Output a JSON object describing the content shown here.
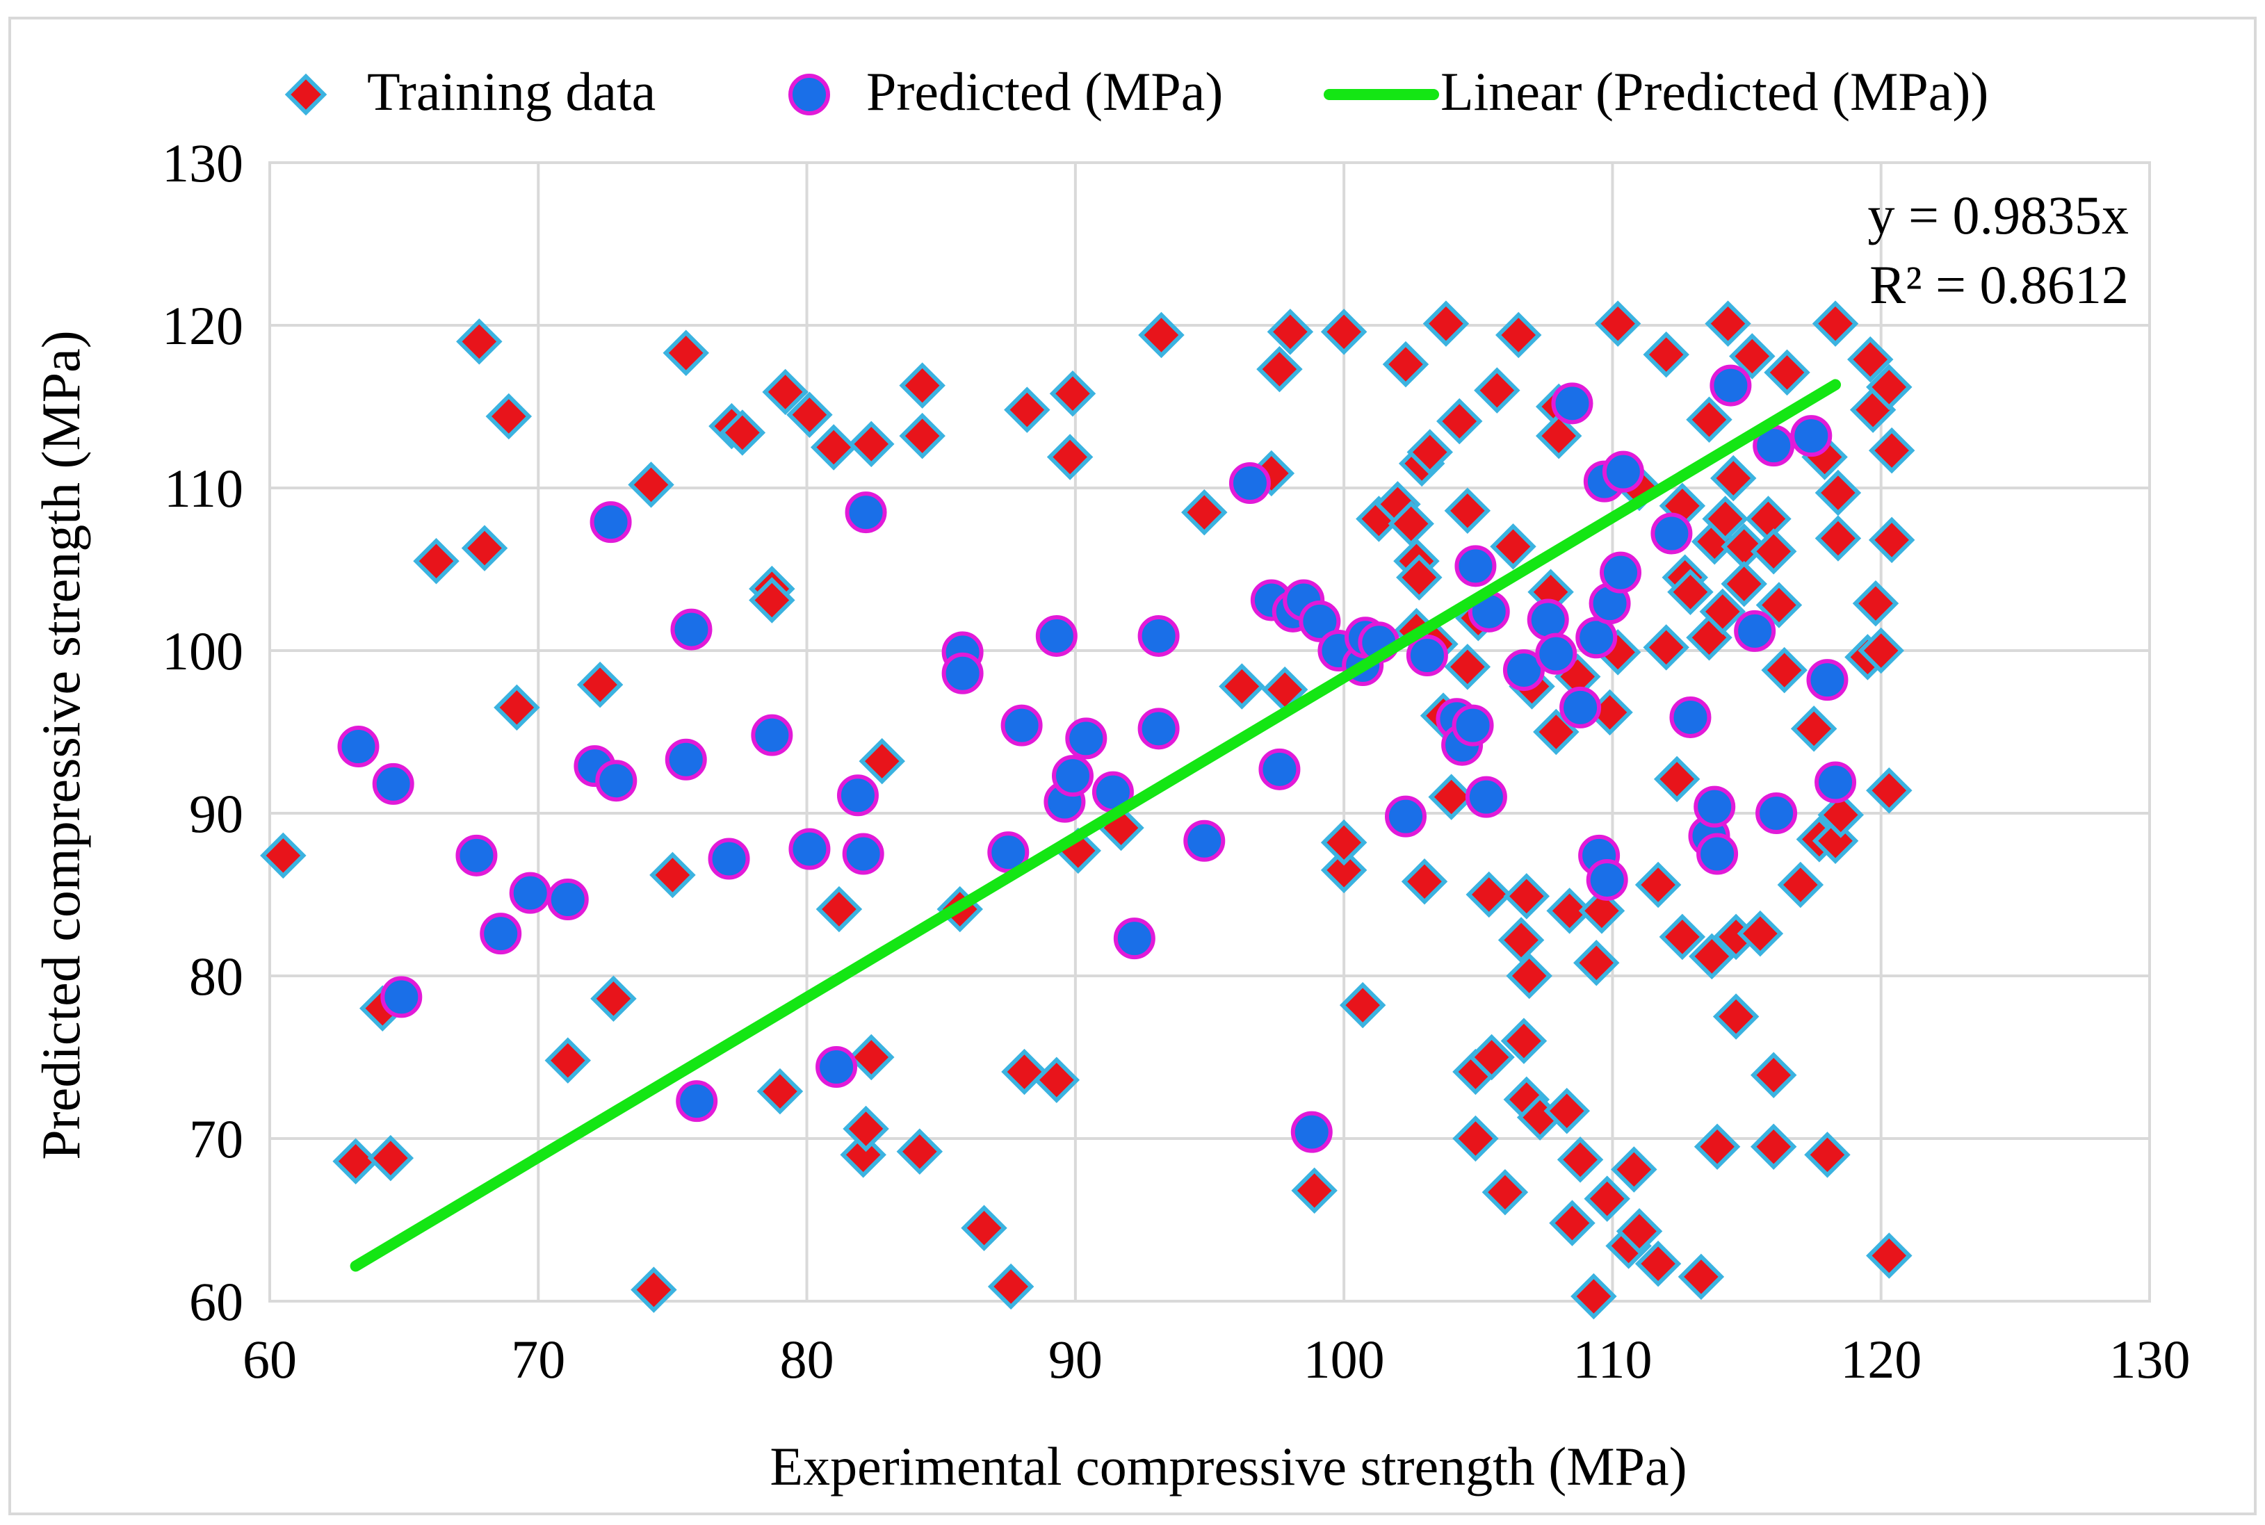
{
  "chart_data": {
    "type": "scatter",
    "xlabel": "Experimental compressive strength (MPa)",
    "ylabel": "Predicted compressive strength (MPa)",
    "xlim": [
      60,
      130
    ],
    "ylim": [
      60,
      130
    ],
    "x_ticks": [
      60,
      70,
      80,
      90,
      100,
      110,
      120,
      130
    ],
    "y_ticks": [
      60,
      70,
      80,
      90,
      100,
      110,
      120,
      130
    ],
    "grid": true,
    "legend_position": "top",
    "legend": [
      "Training data",
      "Predicted (MPa)",
      "Linear (Predicted (MPa))"
    ],
    "equation": "y = 0.9835x",
    "r_squared": "R² = 0.8612",
    "colors": {
      "training_fill": "#e8141b",
      "training_edge": "#3bb3e0",
      "predicted_fill": "#1a6fe8",
      "predicted_edge": "#e21ad8",
      "trendline": "#14e614",
      "grid": "#d9d9d9",
      "frame": "#d9d9d9"
    },
    "trendline": {
      "slope": 0.9835,
      "x_range": [
        63.2,
        118.3
      ]
    },
    "series": [
      {
        "name": "Training data",
        "marker": "diamond",
        "points": [
          [
            60.5,
            87.4
          ],
          [
            63.2,
            68.6
          ],
          [
            64.2,
            78.0
          ],
          [
            64.5,
            68.8
          ],
          [
            66.2,
            105.5
          ],
          [
            67.8,
            119.0
          ],
          [
            68.0,
            106.3
          ],
          [
            68.9,
            114.4
          ],
          [
            69.2,
            96.5
          ],
          [
            71.1,
            74.8
          ],
          [
            72.3,
            97.9
          ],
          [
            72.8,
            78.6
          ],
          [
            74.2,
            110.2
          ],
          [
            74.3,
            60.7
          ],
          [
            75.0,
            86.2
          ],
          [
            75.5,
            118.3
          ],
          [
            77.2,
            113.8
          ],
          [
            77.6,
            113.4
          ],
          [
            78.7,
            103.8
          ],
          [
            78.7,
            103.1
          ],
          [
            79.0,
            72.9
          ],
          [
            79.2,
            115.9
          ],
          [
            80.1,
            114.5
          ],
          [
            81.0,
            112.5
          ],
          [
            81.2,
            84.1
          ],
          [
            82.1,
            69.0
          ],
          [
            82.2,
            70.6
          ],
          [
            82.4,
            75.0
          ],
          [
            82.4,
            112.7
          ],
          [
            82.8,
            93.2
          ],
          [
            84.2,
            69.2
          ],
          [
            84.3,
            116.3
          ],
          [
            84.3,
            113.2
          ],
          [
            85.7,
            84.1
          ],
          [
            86.6,
            64.5
          ],
          [
            87.6,
            60.9
          ],
          [
            88.1,
            74.1
          ],
          [
            88.2,
            114.8
          ],
          [
            89.3,
            73.6
          ],
          [
            89.8,
            111.9
          ],
          [
            89.9,
            115.8
          ],
          [
            90.1,
            87.7
          ],
          [
            91.7,
            89.1
          ],
          [
            93.2,
            119.4
          ],
          [
            94.8,
            108.5
          ],
          [
            96.2,
            97.8
          ],
          [
            97.3,
            110.9
          ],
          [
            97.6,
            117.3
          ],
          [
            97.8,
            97.6
          ],
          [
            98.0,
            119.6
          ],
          [
            98.9,
            66.8
          ],
          [
            100.0,
            119.6
          ],
          [
            100.0,
            86.5
          ],
          [
            100.0,
            88.2
          ],
          [
            100.7,
            78.2
          ],
          [
            101.3,
            108.1
          ],
          [
            102.0,
            109.0
          ],
          [
            102.3,
            117.6
          ],
          [
            102.5,
            107.8
          ],
          [
            102.7,
            101.2
          ],
          [
            102.7,
            105.5
          ],
          [
            102.8,
            104.5
          ],
          [
            102.9,
            111.5
          ],
          [
            103.0,
            85.8
          ],
          [
            103.2,
            112.2
          ],
          [
            103.4,
            100.4
          ],
          [
            103.7,
            96.0
          ],
          [
            103.8,
            120.1
          ],
          [
            104.0,
            91.0
          ],
          [
            104.3,
            114.1
          ],
          [
            104.6,
            99.0
          ],
          [
            104.6,
            108.6
          ],
          [
            104.9,
            74.1
          ],
          [
            104.9,
            70.0
          ],
          [
            105.0,
            102.0
          ],
          [
            105.4,
            85.0
          ],
          [
            105.5,
            75.0
          ],
          [
            105.7,
            116.0
          ],
          [
            106.0,
            66.7
          ],
          [
            106.3,
            106.4
          ],
          [
            106.5,
            119.4
          ],
          [
            106.6,
            82.2
          ],
          [
            106.7,
            76.0
          ],
          [
            106.8,
            84.9
          ],
          [
            106.8,
            72.4
          ],
          [
            106.9,
            80.0
          ],
          [
            107.0,
            97.8
          ],
          [
            107.3,
            71.3
          ],
          [
            107.7,
            103.6
          ],
          [
            107.9,
            95.0
          ],
          [
            108.0,
            115.0
          ],
          [
            108.0,
            113.2
          ],
          [
            108.3,
            71.7
          ],
          [
            108.4,
            84.0
          ],
          [
            108.5,
            64.8
          ],
          [
            108.7,
            98.4
          ],
          [
            108.8,
            68.7
          ],
          [
            109.3,
            60.3
          ],
          [
            109.4,
            80.8
          ],
          [
            109.6,
            84.0
          ],
          [
            109.8,
            66.3
          ],
          [
            109.9,
            96.2
          ],
          [
            110.2,
            99.9
          ],
          [
            110.2,
            120.1
          ],
          [
            110.6,
            63.4
          ],
          [
            110.8,
            68.1
          ],
          [
            111.0,
            64.3
          ],
          [
            111.0,
            110.0
          ],
          [
            111.7,
            85.6
          ],
          [
            111.7,
            62.3
          ],
          [
            112.0,
            118.2
          ],
          [
            112.0,
            100.2
          ],
          [
            112.4,
            92.1
          ],
          [
            112.6,
            108.9
          ],
          [
            112.6,
            82.4
          ],
          [
            112.7,
            104.5
          ],
          [
            112.9,
            103.6
          ],
          [
            113.3,
            61.5
          ],
          [
            113.6,
            100.8
          ],
          [
            113.6,
            114.2
          ],
          [
            113.7,
            81.2
          ],
          [
            113.8,
            106.7
          ],
          [
            113.9,
            69.5
          ],
          [
            114.1,
            102.4
          ],
          [
            114.2,
            108.1
          ],
          [
            114.3,
            120.1
          ],
          [
            114.5,
            110.6
          ],
          [
            114.6,
            77.5
          ],
          [
            114.6,
            82.4
          ],
          [
            114.9,
            106.4
          ],
          [
            114.9,
            104.1
          ],
          [
            115.2,
            118.1
          ],
          [
            115.5,
            82.6
          ],
          [
            115.8,
            108.1
          ],
          [
            116.0,
            106.1
          ],
          [
            116.0,
            69.5
          ],
          [
            116.0,
            73.9
          ],
          [
            116.2,
            102.8
          ],
          [
            116.4,
            98.8
          ],
          [
            116.5,
            117.1
          ],
          [
            117.0,
            85.6
          ],
          [
            117.5,
            95.2
          ],
          [
            117.7,
            88.4
          ],
          [
            117.9,
            111.9
          ],
          [
            118.0,
            69.0
          ],
          [
            118.3,
            120.1
          ],
          [
            118.3,
            88.3
          ],
          [
            118.4,
            106.9
          ],
          [
            118.4,
            109.7
          ],
          [
            118.5,
            89.9
          ],
          [
            119.5,
            99.6
          ],
          [
            119.6,
            117.9
          ],
          [
            119.7,
            114.8
          ],
          [
            119.8,
            102.9
          ],
          [
            120.0,
            100.0
          ],
          [
            120.3,
            91.4
          ],
          [
            120.3,
            116.2
          ],
          [
            120.3,
            62.8
          ],
          [
            120.4,
            112.3
          ],
          [
            120.4,
            106.8
          ]
        ]
      },
      {
        "name": "Predicted (MPa)",
        "marker": "circle",
        "points": [
          [
            63.3,
            94.1
          ],
          [
            64.6,
            91.8
          ],
          [
            64.9,
            78.7
          ],
          [
            67.7,
            87.4
          ],
          [
            68.6,
            82.6
          ],
          [
            69.7,
            85.1
          ],
          [
            71.1,
            84.7
          ],
          [
            72.1,
            92.9
          ],
          [
            72.7,
            107.9
          ],
          [
            72.9,
            92.0
          ],
          [
            75.5,
            93.3
          ],
          [
            75.7,
            101.3
          ],
          [
            75.9,
            72.3
          ],
          [
            77.1,
            87.2
          ],
          [
            78.7,
            94.8
          ],
          [
            80.1,
            87.8
          ],
          [
            81.1,
            74.4
          ],
          [
            81.9,
            91.1
          ],
          [
            82.1,
            87.5
          ],
          [
            82.2,
            108.5
          ],
          [
            85.8,
            99.9
          ],
          [
            85.8,
            98.6
          ],
          [
            87.5,
            87.6
          ],
          [
            88.0,
            95.4
          ],
          [
            89.3,
            100.9
          ],
          [
            89.6,
            90.7
          ],
          [
            89.9,
            92.3
          ],
          [
            90.4,
            94.6
          ],
          [
            91.4,
            91.3
          ],
          [
            92.2,
            82.3
          ],
          [
            93.1,
            95.2
          ],
          [
            93.1,
            100.9
          ],
          [
            94.8,
            88.3
          ],
          [
            96.5,
            110.3
          ],
          [
            97.3,
            103.1
          ],
          [
            97.6,
            92.7
          ],
          [
            98.1,
            102.4
          ],
          [
            98.5,
            103.1
          ],
          [
            98.8,
            70.4
          ],
          [
            99.1,
            101.8
          ],
          [
            99.8,
            100.0
          ],
          [
            100.7,
            99.1
          ],
          [
            100.8,
            100.8
          ],
          [
            101.3,
            100.5
          ],
          [
            102.3,
            89.8
          ],
          [
            103.1,
            99.7
          ],
          [
            104.2,
            95.8
          ],
          [
            104.4,
            94.2
          ],
          [
            104.8,
            95.4
          ],
          [
            104.9,
            105.2
          ],
          [
            105.3,
            91.0
          ],
          [
            105.4,
            102.4
          ],
          [
            106.7,
            98.8
          ],
          [
            107.6,
            101.9
          ],
          [
            107.9,
            99.8
          ],
          [
            108.5,
            115.2
          ],
          [
            108.8,
            96.5
          ],
          [
            109.4,
            100.8
          ],
          [
            109.5,
            87.4
          ],
          [
            109.7,
            110.4
          ],
          [
            109.8,
            85.9
          ],
          [
            109.9,
            102.9
          ],
          [
            110.3,
            104.8
          ],
          [
            110.4,
            111.0
          ],
          [
            112.2,
            107.2
          ],
          [
            112.9,
            95.9
          ],
          [
            113.6,
            88.6
          ],
          [
            113.8,
            90.4
          ],
          [
            113.9,
            87.5
          ],
          [
            114.4,
            116.3
          ],
          [
            115.3,
            101.2
          ],
          [
            116.0,
            112.6
          ],
          [
            116.1,
            90.0
          ],
          [
            117.4,
            113.2
          ],
          [
            118.0,
            98.2
          ],
          [
            118.3,
            91.9
          ]
        ]
      }
    ]
  }
}
